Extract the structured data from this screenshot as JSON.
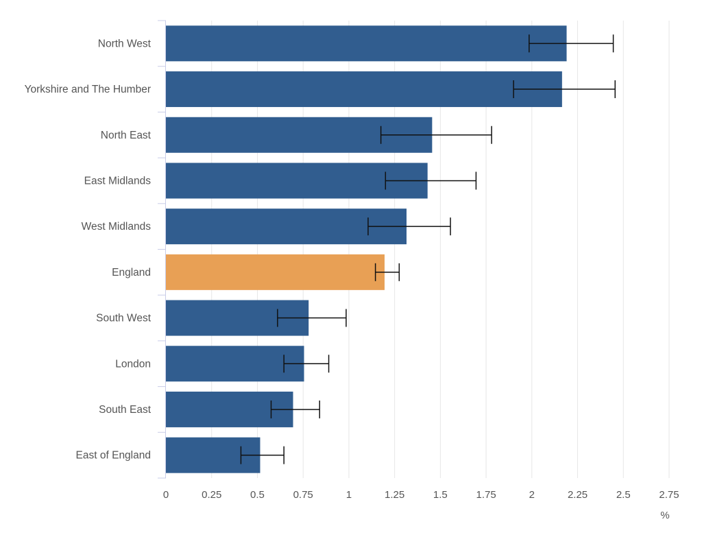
{
  "chart_data": {
    "type": "bar",
    "orientation": "horizontal",
    "categories": [
      "North West",
      "Yorkshire and The Humber",
      "North East",
      "East Midlands",
      "West Midlands",
      "England",
      "South West",
      "London",
      "South East",
      "East of England"
    ],
    "values": [
      2.19,
      2.165,
      1.455,
      1.43,
      1.315,
      1.195,
      0.78,
      0.755,
      0.695,
      0.515
    ],
    "ci_lower": [
      1.985,
      1.9,
      1.175,
      1.2,
      1.105,
      1.145,
      0.61,
      0.645,
      0.575,
      0.41
    ],
    "ci_upper": [
      2.445,
      2.455,
      1.78,
      1.695,
      1.555,
      1.275,
      0.985,
      0.89,
      0.84,
      0.645
    ],
    "highlight_category": "England",
    "colors": {
      "default": "#315d8f",
      "highlight": "#e8a055",
      "error_bar": "#111111",
      "grid": "#e6e6e6",
      "axis": "#c9cde8"
    },
    "x_ticks": [
      "0",
      "0.25",
      "0.5",
      "0.75",
      "1",
      "1.25",
      "1.5",
      "1.75",
      "2",
      "2.25",
      "2.5",
      "2.75"
    ],
    "xlim": [
      0,
      2.75
    ],
    "xlabel": "%",
    "grid": true
  }
}
